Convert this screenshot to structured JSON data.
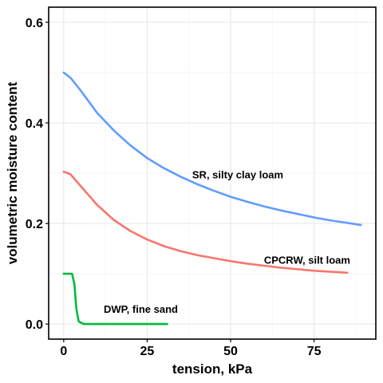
{
  "chart_data": {
    "type": "line",
    "title": "",
    "xlabel": "tension, kPa",
    "ylabel": "volumetric moisture content",
    "xlim": [
      -4.5,
      93.5
    ],
    "ylim": [
      -0.03,
      0.63
    ],
    "x_ticks": [
      0,
      25,
      50,
      75
    ],
    "x_tick_labels": [
      "0",
      "25",
      "50",
      "75"
    ],
    "y_ticks": [
      0.0,
      0.2,
      0.4,
      0.6
    ],
    "y_tick_labels": [
      "0.0",
      "0.2",
      "0.4",
      "0.6"
    ],
    "grid": true,
    "legend": "none",
    "series": [
      {
        "name": "SR, silty clay loam",
        "color": "#619CFF",
        "x": [
          0,
          2,
          5,
          10,
          15,
          20,
          25,
          30,
          35,
          40,
          45,
          50,
          55,
          60,
          65,
          70,
          75,
          80,
          85,
          89
        ],
        "y": [
          0.5,
          0.49,
          0.465,
          0.42,
          0.385,
          0.355,
          0.33,
          0.31,
          0.293,
          0.278,
          0.265,
          0.253,
          0.243,
          0.234,
          0.226,
          0.219,
          0.212,
          0.206,
          0.201,
          0.197
        ]
      },
      {
        "name": "CPCRW, silt loam",
        "color": "#F8766D",
        "x": [
          0,
          2,
          5,
          10,
          15,
          20,
          25,
          30,
          35,
          40,
          45,
          50,
          55,
          60,
          65,
          70,
          75,
          80,
          85
        ],
        "y": [
          0.303,
          0.298,
          0.275,
          0.237,
          0.207,
          0.185,
          0.168,
          0.155,
          0.145,
          0.137,
          0.131,
          0.125,
          0.12,
          0.116,
          0.112,
          0.109,
          0.106,
          0.104,
          0.102
        ]
      },
      {
        "name": "DWP, fine sand",
        "color": "#00BA38",
        "x": [
          0,
          2.5,
          3.2,
          3.8,
          4.5,
          6,
          10,
          20,
          31
        ],
        "y": [
          0.1,
          0.1,
          0.08,
          0.03,
          0.005,
          0.0,
          0.0,
          0.0,
          0.0
        ]
      }
    ],
    "annotations": [
      {
        "text": "SR, silty clay loam",
        "x": 38.5,
        "y": 0.29
      },
      {
        "text": "CPCRW, silt loam",
        "x": 60,
        "y": 0.12
      },
      {
        "text": "DWP, fine sand",
        "x": 12,
        "y": 0.022
      }
    ]
  }
}
